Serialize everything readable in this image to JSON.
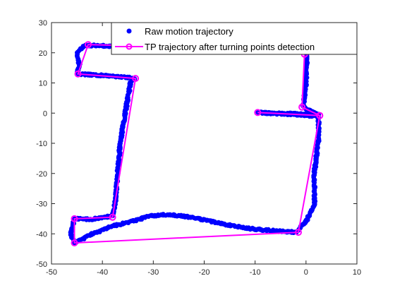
{
  "chart_data": {
    "type": "scatter",
    "title": "",
    "xlabel": "",
    "ylabel": "",
    "xlim": [
      -50,
      10
    ],
    "ylim": [
      -50,
      30
    ],
    "x_ticks": [
      -50,
      -40,
      -30,
      -20,
      -10,
      0,
      10
    ],
    "y_ticks": [
      -50,
      -40,
      -30,
      -20,
      -10,
      0,
      10,
      20,
      30
    ],
    "grid": false,
    "legend_position": "top-right",
    "series": [
      {
        "name": "Raw motion trajectory",
        "kind": "markers",
        "color": "#0000ff",
        "path": [
          [
            0.2,
            20.0
          ],
          [
            0.0,
            10.0
          ],
          [
            -0.5,
            2.0
          ],
          [
            2.5,
            -0.5
          ],
          [
            -9.5,
            0.2
          ],
          [
            2.5,
            -1.0
          ],
          [
            2.4,
            -10.0
          ],
          [
            1.6,
            -20.0
          ],
          [
            1.7,
            -30.0
          ],
          [
            0.0,
            -36.0
          ],
          [
            -2.0,
            -39.5
          ],
          [
            -10.0,
            -38.5
          ],
          [
            -14.0,
            -37.5
          ],
          [
            -17.0,
            -36.5
          ],
          [
            -21.0,
            -35.0
          ],
          [
            -24.0,
            -34.2
          ],
          [
            -27.5,
            -33.6
          ],
          [
            -31.0,
            -34.2
          ],
          [
            -34.0,
            -35.8
          ],
          [
            -38.0,
            -37.5
          ],
          [
            -42.0,
            -40.0
          ],
          [
            -45.5,
            -43.0
          ],
          [
            -46.2,
            -40.0
          ],
          [
            -45.5,
            -35.0
          ],
          [
            -42.0,
            -35.2
          ],
          [
            -38.0,
            -34.0
          ],
          [
            -37.5,
            -30.0
          ],
          [
            -37.0,
            -20.0
          ],
          [
            -36.5,
            -10.0
          ],
          [
            -35.5,
            0.0
          ],
          [
            -34.5,
            10.0
          ],
          [
            -33.8,
            11.5
          ],
          [
            -36.0,
            12.0
          ],
          [
            -40.0,
            12.5
          ],
          [
            -45.0,
            13.0
          ],
          [
            -44.5,
            16.0
          ],
          [
            -45.0,
            20.0
          ],
          [
            -43.5,
            22.5
          ],
          [
            -38.0,
            22.2
          ],
          [
            -33.0,
            22.0
          ]
        ]
      },
      {
        "name": "TP trajectory after turning points detection",
        "kind": "line-circles",
        "color": "#ff00ff",
        "points": [
          [
            -0.3,
            19.5
          ],
          [
            -0.8,
            2.0
          ],
          [
            2.7,
            -0.8
          ],
          [
            -9.5,
            0.2
          ],
          [
            2.7,
            -0.8
          ],
          [
            -1.5,
            -39.5
          ],
          [
            -45.5,
            -43.0
          ],
          [
            -45.5,
            -35.0
          ],
          [
            -38.0,
            -34.5
          ],
          [
            -33.5,
            11.5
          ],
          [
            -44.8,
            13.0
          ],
          [
            -42.8,
            22.7
          ],
          [
            -33.0,
            22.3
          ]
        ]
      }
    ]
  }
}
